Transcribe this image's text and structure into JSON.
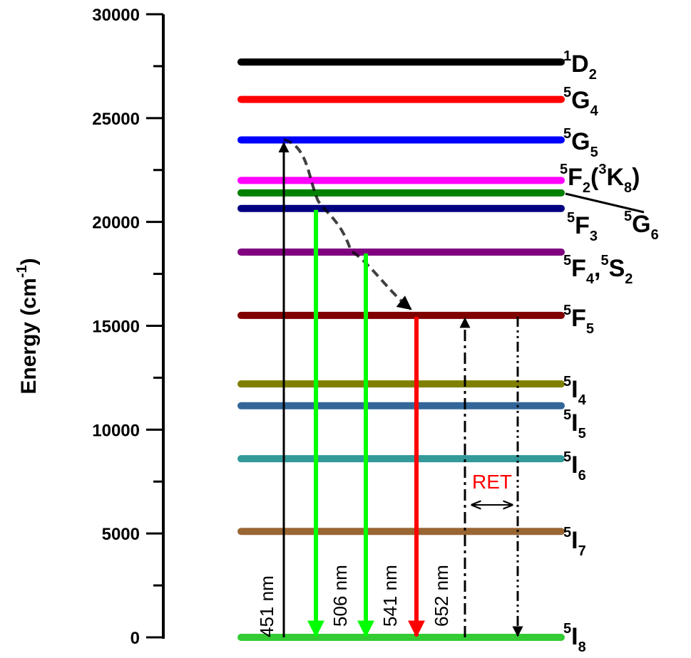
{
  "axis": {
    "title_main": "Energy (cm",
    "title_sup": "-1",
    "title_close": ")",
    "range": [
      0,
      30000
    ],
    "ticks": [
      {
        "value": 0,
        "label": "0"
      },
      {
        "value": 5000,
        "label": "5000"
      },
      {
        "value": 10000,
        "label": "10000"
      },
      {
        "value": 15000,
        "label": "15000"
      },
      {
        "value": 20000,
        "label": "20000"
      },
      {
        "value": 25000,
        "label": "25000"
      },
      {
        "value": 30000,
        "label": "30000"
      }
    ]
  },
  "levels": [
    {
      "id": "1D2",
      "energy": 27700,
      "color": "#000000"
    },
    {
      "id": "5G4",
      "energy": 25900,
      "color": "#ff0000"
    },
    {
      "id": "5G5",
      "energy": 23950,
      "color": "#0000ff"
    },
    {
      "id": "5F2_3K8",
      "energy": 22000,
      "color": "#ff00ff"
    },
    {
      "id": "5G6",
      "energy": 21400,
      "color": "#008000"
    },
    {
      "id": "5F3",
      "energy": 20650,
      "color": "#000080"
    },
    {
      "id": "5F4_5S2",
      "energy": 18550,
      "color": "#800080"
    },
    {
      "id": "5F5",
      "energy": 15500,
      "color": "#800000"
    },
    {
      "id": "5I4",
      "energy": 12200,
      "color": "#808000"
    },
    {
      "id": "5I5",
      "energy": 11150,
      "color": "#336699"
    },
    {
      "id": "5I6",
      "energy": 8600,
      "color": "#339999"
    },
    {
      "id": "5I7",
      "energy": 5100,
      "color": "#996633"
    },
    {
      "id": "5I8",
      "energy": 0,
      "color": "#33cc33"
    }
  ],
  "level_labels": [
    {
      "id": "1D2",
      "pre": "1",
      "main": "D",
      "sub": "2",
      "post": ""
    },
    {
      "id": "5G4",
      "pre": "5",
      "main": "G",
      "sub": "4",
      "post": ""
    },
    {
      "id": "5G5",
      "pre": "5",
      "main": "G",
      "sub": "5",
      "post": ""
    },
    {
      "id": "5F2_3K8",
      "pre": "5",
      "main": "F",
      "sub": "2",
      "post": "(",
      "pre2": "3",
      "main2": "K",
      "sub2": "8",
      "post2": ")"
    },
    {
      "id": "5G6",
      "pre": "5",
      "main": "G",
      "sub": "6",
      "post": ""
    },
    {
      "id": "5F3",
      "pre": "5",
      "main": "F",
      "sub": "3",
      "post": ""
    },
    {
      "id": "5F4_5S2",
      "pre": "5",
      "main": "F",
      "sub": "4",
      "post": ",",
      "pre2": "5",
      "main2": "S",
      "sub2": "2",
      "post2": ""
    },
    {
      "id": "5F5",
      "pre": "5",
      "main": "F",
      "sub": "5",
      "post": ""
    },
    {
      "id": "5I4",
      "pre": "5",
      "main": "I",
      "sub": "4",
      "post": ""
    },
    {
      "id": "5I5",
      "pre": "5",
      "main": "I",
      "sub": "5",
      "post": ""
    },
    {
      "id": "5I6",
      "pre": "5",
      "main": "I",
      "sub": "6",
      "post": ""
    },
    {
      "id": "5I7",
      "pre": "5",
      "main": "I",
      "sub": "7",
      "post": ""
    },
    {
      "id": "5I8",
      "pre": "5",
      "main": "I",
      "sub": "8",
      "post": ""
    }
  ],
  "transitions": [
    {
      "id": "excitation",
      "from": 0,
      "to": 23950,
      "color": "#000000",
      "style": "solid",
      "label": "451 nm"
    },
    {
      "id": "emission-506",
      "from": 20650,
      "to": 0,
      "color": "#00ff00",
      "style": "solid",
      "label": "506 nm"
    },
    {
      "id": "emission-541",
      "from": 18550,
      "to": 0,
      "color": "#00ff00",
      "style": "solid",
      "label": "541 nm"
    },
    {
      "id": "emission-652",
      "from": 15500,
      "to": 0,
      "color": "#ff0000",
      "style": "solid",
      "label": "652 nm"
    },
    {
      "id": "ret-up",
      "from": 0,
      "to": 15500,
      "color": "#000000",
      "style": "dashdot",
      "label": ""
    },
    {
      "id": "ret-down",
      "from": 15500,
      "to": 0,
      "color": "#000000",
      "style": "dashdotdot",
      "label": ""
    }
  ],
  "ret": {
    "label": "RET"
  }
}
